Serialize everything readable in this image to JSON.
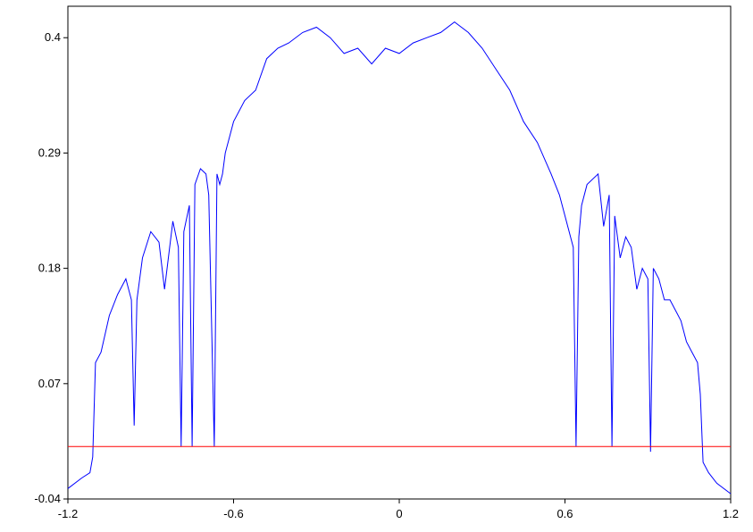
{
  "chart_data": {
    "type": "line",
    "title": "",
    "xlabel": "",
    "ylabel": "",
    "xlim": [
      -1.2,
      1.2
    ],
    "ylim": [
      -0.04,
      0.43
    ],
    "grid": false,
    "x_ticks": [
      -1.2,
      -0.6,
      0,
      0.6,
      1.2
    ],
    "x_tick_labels": [
      "-1.2",
      "-0.6",
      "0",
      "0.6",
      "1.2"
    ],
    "y_ticks": [
      -0.04,
      0.07,
      0.18,
      0.29,
      0.4
    ],
    "y_tick_labels": [
      "-0.04",
      "0.07",
      "0.18",
      "0.29",
      "0.4"
    ],
    "series": [
      {
        "color": "#0000ff",
        "x": [
          -1.2,
          -1.15,
          -1.12,
          -1.11,
          -1.1,
          -1.08,
          -1.05,
          -1.02,
          -0.99,
          -0.97,
          -0.96,
          -0.95,
          -0.93,
          -0.9,
          -0.87,
          -0.85,
          -0.82,
          -0.8,
          -0.79,
          -0.78,
          -0.76,
          -0.75,
          -0.74,
          -0.72,
          -0.7,
          -0.69,
          -0.67,
          -0.66,
          -0.65,
          -0.64,
          -0.63,
          -0.62,
          -0.6,
          -0.56,
          -0.52,
          -0.48,
          -0.44,
          -0.4,
          -0.35,
          -0.3,
          -0.25,
          -0.2,
          -0.15,
          -0.1,
          -0.05,
          0.0,
          0.05,
          0.1,
          0.15,
          0.2,
          0.25,
          0.3,
          0.35,
          0.4,
          0.45,
          0.5,
          0.55,
          0.58,
          0.61,
          0.63,
          0.64,
          0.65,
          0.66,
          0.68,
          0.72,
          0.74,
          0.76,
          0.77,
          0.78,
          0.8,
          0.82,
          0.84,
          0.86,
          0.88,
          0.9,
          0.91,
          0.92,
          0.94,
          0.96,
          0.98,
          1.0,
          1.02,
          1.04,
          1.06,
          1.08,
          1.09,
          1.1,
          1.12,
          1.15,
          1.2
        ],
        "y": [
          -0.03,
          -0.02,
          -0.015,
          0.0,
          0.09,
          0.1,
          0.135,
          0.155,
          0.17,
          0.15,
          0.03,
          0.15,
          0.19,
          0.215,
          0.205,
          0.16,
          0.225,
          0.2,
          0.01,
          0.215,
          0.24,
          0.01,
          0.26,
          0.275,
          0.27,
          0.25,
          0.01,
          0.27,
          0.26,
          0.27,
          0.29,
          0.3,
          0.32,
          0.34,
          0.35,
          0.38,
          0.39,
          0.395,
          0.405,
          0.41,
          0.4,
          0.385,
          0.39,
          0.375,
          0.39,
          0.385,
          0.395,
          0.4,
          0.405,
          0.415,
          0.405,
          0.39,
          0.37,
          0.35,
          0.32,
          0.3,
          0.27,
          0.25,
          0.22,
          0.2,
          0.01,
          0.21,
          0.24,
          0.26,
          0.27,
          0.22,
          0.25,
          0.01,
          0.23,
          0.19,
          0.21,
          0.2,
          0.16,
          0.18,
          0.17,
          0.005,
          0.18,
          0.17,
          0.15,
          0.15,
          0.14,
          0.13,
          0.11,
          0.1,
          0.09,
          0.06,
          -0.005,
          -0.015,
          -0.025,
          -0.035
        ]
      },
      {
        "color": "#ff0000",
        "x": [
          -1.2,
          1.2
        ],
        "y": [
          0.01,
          0.01
        ]
      }
    ]
  }
}
